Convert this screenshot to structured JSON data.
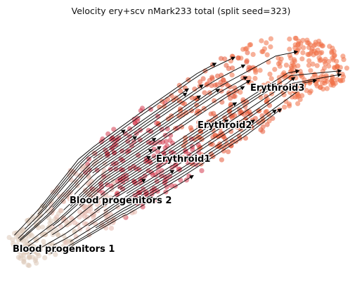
{
  "chart_data": {
    "type": "scatter",
    "subtype": "embedding scatter with velocity streamlines",
    "title": "Velocity ery+scv nMark233 total (split seed=323)",
    "xlabel": "",
    "ylabel": "",
    "axes_visible": false,
    "grid": false,
    "legend": "cluster names drawn on the embedding",
    "colors": {
      "Blood progenitors 1": "#dcc8b8",
      "Blood progenitors 2": "#e3b7ac",
      "Erythroid1": "#d43a4e",
      "Erythroid2": "#e65a38",
      "Erythroid3": "#f07045",
      "streamline": "#000000"
    },
    "clusters": [
      {
        "name": "Blood progenitors 1"
      },
      {
        "name": "Blood progenitors 2"
      },
      {
        "name": "Erythroid1"
      },
      {
        "name": "Erythroid2"
      },
      {
        "name": "Erythroid3"
      }
    ]
  }
}
